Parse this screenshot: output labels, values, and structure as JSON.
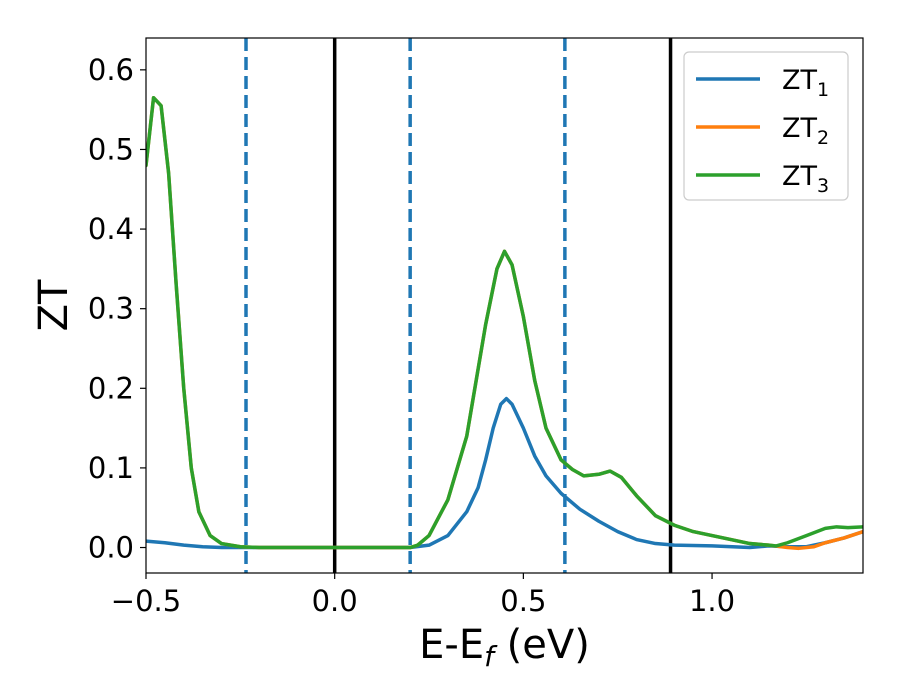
{
  "chart_data": {
    "type": "line",
    "xlabel": "E-E",
    "xlabel_sub": "f",
    "xlabel_unit": " (eV)",
    "ylabel": "ZT",
    "xlim": [
      -0.5,
      1.4
    ],
    "ylim": [
      -0.032,
      0.64
    ],
    "xticks": [
      {
        "value": -0.5,
        "label": "−0.5"
      },
      {
        "value": 0.0,
        "label": "0.0"
      },
      {
        "value": 0.5,
        "label": "0.5"
      },
      {
        "value": 1.0,
        "label": "1.0"
      }
    ],
    "yticks": [
      {
        "value": 0.0,
        "label": "0.0"
      },
      {
        "value": 0.1,
        "label": "0.1"
      },
      {
        "value": 0.2,
        "label": "0.2"
      },
      {
        "value": 0.3,
        "label": "0.3"
      },
      {
        "value": 0.4,
        "label": "0.4"
      },
      {
        "value": 0.5,
        "label": "0.5"
      },
      {
        "value": 0.6,
        "label": "0.6"
      }
    ],
    "grid": false,
    "legend_position": "upper right",
    "vlines": [
      {
        "x": 0.0,
        "style": "solid",
        "color": "#000000"
      },
      {
        "x": 0.89,
        "style": "solid",
        "color": "#000000"
      },
      {
        "x": -0.235,
        "style": "dashed",
        "color": "#1f77b4"
      },
      {
        "x": 0.2,
        "style": "dashed",
        "color": "#1f77b4"
      },
      {
        "x": 0.61,
        "style": "dashed",
        "color": "#1f77b4"
      }
    ],
    "series": [
      {
        "name": "ZT",
        "name_sub": "1",
        "color": "#1f77b4",
        "points": [
          [
            -0.5,
            0.008
          ],
          [
            -0.45,
            0.006
          ],
          [
            -0.4,
            0.003
          ],
          [
            -0.35,
            0.001
          ],
          [
            -0.3,
            0.0
          ],
          [
            -0.2,
            0.0
          ],
          [
            -0.1,
            0.0
          ],
          [
            0.0,
            0.0
          ],
          [
            0.1,
            0.0
          ],
          [
            0.2,
            0.0
          ],
          [
            0.25,
            0.003
          ],
          [
            0.3,
            0.015
          ],
          [
            0.35,
            0.045
          ],
          [
            0.38,
            0.075
          ],
          [
            0.4,
            0.11
          ],
          [
            0.42,
            0.15
          ],
          [
            0.44,
            0.18
          ],
          [
            0.455,
            0.187
          ],
          [
            0.47,
            0.18
          ],
          [
            0.5,
            0.15
          ],
          [
            0.53,
            0.115
          ],
          [
            0.56,
            0.09
          ],
          [
            0.6,
            0.068
          ],
          [
            0.65,
            0.048
          ],
          [
            0.7,
            0.033
          ],
          [
            0.75,
            0.02
          ],
          [
            0.8,
            0.01
          ],
          [
            0.85,
            0.005
          ],
          [
            0.9,
            0.003
          ],
          [
            1.0,
            0.002
          ],
          [
            1.1,
            0.0
          ],
          [
            1.15,
            0.002
          ],
          [
            1.2,
            0.001
          ],
          [
            1.25,
            0.001
          ],
          [
            1.3,
            0.006
          ],
          [
            1.35,
            0.012
          ],
          [
            1.4,
            0.02
          ]
        ]
      },
      {
        "name": "ZT",
        "name_sub": "2",
        "color": "#ff7f0e",
        "points": [
          [
            -0.5,
            0.48
          ],
          [
            -0.48,
            0.565
          ],
          [
            -0.46,
            0.555
          ],
          [
            -0.44,
            0.47
          ],
          [
            -0.42,
            0.33
          ],
          [
            -0.4,
            0.2
          ],
          [
            -0.38,
            0.1
          ],
          [
            -0.36,
            0.045
          ],
          [
            -0.33,
            0.015
          ],
          [
            -0.3,
            0.005
          ],
          [
            -0.25,
            0.001
          ],
          [
            -0.2,
            0.0
          ],
          [
            0.0,
            0.0
          ],
          [
            0.2,
            0.0
          ],
          [
            0.22,
            0.003
          ],
          [
            0.25,
            0.015
          ],
          [
            0.3,
            0.06
          ],
          [
            0.35,
            0.14
          ],
          [
            0.4,
            0.28
          ],
          [
            0.43,
            0.35
          ],
          [
            0.45,
            0.372
          ],
          [
            0.47,
            0.355
          ],
          [
            0.5,
            0.29
          ],
          [
            0.53,
            0.21
          ],
          [
            0.56,
            0.15
          ],
          [
            0.6,
            0.11
          ],
          [
            0.63,
            0.098
          ],
          [
            0.66,
            0.09
          ],
          [
            0.7,
            0.092
          ],
          [
            0.73,
            0.096
          ],
          [
            0.76,
            0.088
          ],
          [
            0.8,
            0.065
          ],
          [
            0.85,
            0.04
          ],
          [
            0.9,
            0.028
          ],
          [
            0.95,
            0.02
          ],
          [
            1.0,
            0.015
          ],
          [
            1.05,
            0.01
          ],
          [
            1.1,
            0.005
          ],
          [
            1.15,
            0.003
          ],
          [
            1.2,
            0.0
          ],
          [
            1.23,
            -0.001
          ],
          [
            1.27,
            0.001
          ],
          [
            1.3,
            0.006
          ],
          [
            1.35,
            0.012
          ],
          [
            1.4,
            0.02
          ]
        ]
      },
      {
        "name": "ZT",
        "name_sub": "3",
        "color": "#2ca02c",
        "points": [
          [
            -0.5,
            0.48
          ],
          [
            -0.48,
            0.565
          ],
          [
            -0.46,
            0.555
          ],
          [
            -0.44,
            0.47
          ],
          [
            -0.42,
            0.33
          ],
          [
            -0.4,
            0.2
          ],
          [
            -0.38,
            0.1
          ],
          [
            -0.36,
            0.045
          ],
          [
            -0.33,
            0.015
          ],
          [
            -0.3,
            0.005
          ],
          [
            -0.25,
            0.001
          ],
          [
            -0.2,
            0.0
          ],
          [
            0.0,
            0.0
          ],
          [
            0.2,
            0.0
          ],
          [
            0.22,
            0.003
          ],
          [
            0.25,
            0.015
          ],
          [
            0.3,
            0.06
          ],
          [
            0.35,
            0.14
          ],
          [
            0.4,
            0.28
          ],
          [
            0.43,
            0.35
          ],
          [
            0.45,
            0.372
          ],
          [
            0.47,
            0.355
          ],
          [
            0.5,
            0.29
          ],
          [
            0.53,
            0.21
          ],
          [
            0.56,
            0.15
          ],
          [
            0.6,
            0.11
          ],
          [
            0.63,
            0.098
          ],
          [
            0.66,
            0.09
          ],
          [
            0.7,
            0.092
          ],
          [
            0.73,
            0.096
          ],
          [
            0.76,
            0.088
          ],
          [
            0.8,
            0.065
          ],
          [
            0.85,
            0.04
          ],
          [
            0.9,
            0.028
          ],
          [
            0.95,
            0.02
          ],
          [
            1.0,
            0.015
          ],
          [
            1.05,
            0.01
          ],
          [
            1.1,
            0.005
          ],
          [
            1.15,
            0.003
          ],
          [
            1.17,
            0.002
          ],
          [
            1.2,
            0.006
          ],
          [
            1.25,
            0.015
          ],
          [
            1.3,
            0.024
          ],
          [
            1.33,
            0.026
          ],
          [
            1.36,
            0.025
          ],
          [
            1.4,
            0.026
          ]
        ]
      }
    ]
  }
}
